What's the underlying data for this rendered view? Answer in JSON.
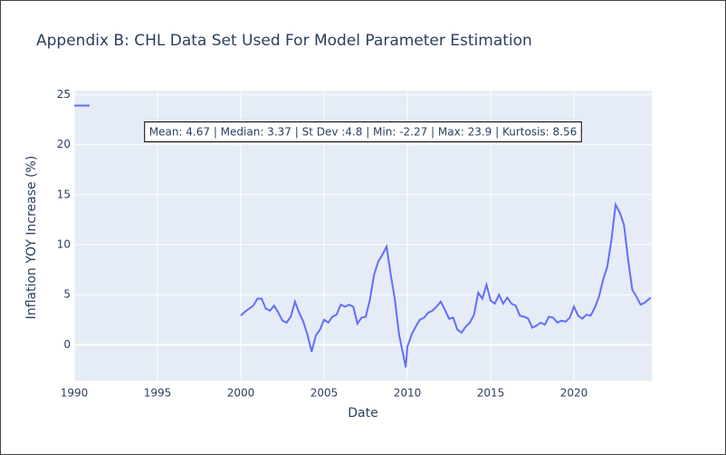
{
  "chart_data": {
    "type": "line",
    "title": "Appendix B: CHL Data Set Used For Model Parameter Estimation",
    "x_label": "Date",
    "y_label": "Inflation YOY Increase (%)",
    "annotation": "Mean: 4.67 | Median: 3.37 | St Dev :4.8 | Min: -2.27 | Max: 23.9 | Kurtosis: 8.56",
    "x": [
      1990,
      1990.92,
      null,
      2000,
      2000.25,
      2000.5,
      2000.75,
      2001,
      2001.25,
      2001.5,
      2001.75,
      2002,
      2002.25,
      2002.5,
      2002.75,
      2003,
      2003.25,
      2003.5,
      2003.75,
      2004,
      2004.25,
      2004.5,
      2004.75,
      2005,
      2005.25,
      2005.5,
      2005.75,
      2006,
      2006.25,
      2006.5,
      2006.75,
      2007,
      2007.25,
      2007.5,
      2007.75,
      2008,
      2008.25,
      2008.5,
      2008.75,
      2009,
      2009.25,
      2009.5,
      2009.75,
      2009.9,
      2010,
      2010.25,
      2010.5,
      2010.75,
      2011,
      2011.25,
      2011.5,
      2011.75,
      2012,
      2012.25,
      2012.5,
      2012.75,
      2013,
      2013.25,
      2013.5,
      2013.75,
      2014,
      2014.25,
      2014.5,
      2014.75,
      2015,
      2015.25,
      2015.5,
      2015.75,
      2016,
      2016.25,
      2016.5,
      2016.75,
      2017,
      2017.25,
      2017.5,
      2017.75,
      2018,
      2018.25,
      2018.5,
      2018.75,
      2019,
      2019.25,
      2019.5,
      2019.75,
      2020,
      2020.25,
      2020.5,
      2020.75,
      2021,
      2021.25,
      2021.5,
      2021.75,
      2022,
      2022.25,
      2022.5,
      2022.75,
      2023,
      2023.25,
      2023.5,
      2023.75,
      2024,
      2024.25,
      2024.6
    ],
    "series": [
      {
        "name": "CHL",
        "color": "#636efa",
        "values": [
          23.9,
          23.9,
          null,
          2.9,
          3.3,
          3.6,
          3.9,
          4.6,
          4.6,
          3.6,
          3.4,
          3.9,
          3.2,
          2.4,
          2.2,
          2.8,
          4.3,
          3.2,
          2.3,
          1.0,
          -0.7,
          0.9,
          1.5,
          2.5,
          2.2,
          2.8,
          3.0,
          4.0,
          3.8,
          4.0,
          3.8,
          2.1,
          2.7,
          2.8,
          4.5,
          7.0,
          8.3,
          9.0,
          9.8,
          7.0,
          4.5,
          1.0,
          -1.0,
          -2.27,
          -0.2,
          1.0,
          1.8,
          2.5,
          2.7,
          3.2,
          3.4,
          3.8,
          4.3,
          3.5,
          2.6,
          2.7,
          1.5,
          1.2,
          1.8,
          2.2,
          3.0,
          5.2,
          4.6,
          6.0,
          4.4,
          4.1,
          5.0,
          4.1,
          4.7,
          4.1,
          3.9,
          2.9,
          2.8,
          2.6,
          1.7,
          1.9,
          2.2,
          2.0,
          2.8,
          2.7,
          2.2,
          2.4,
          2.3,
          2.7,
          3.8,
          2.9,
          2.6,
          3.0,
          2.9,
          3.7,
          4.8,
          6.5,
          7.8,
          10.5,
          14.0,
          13.2,
          12.0,
          8.5,
          5.5,
          4.8,
          4.0,
          4.2,
          4.7
        ]
      }
    ],
    "xlim": [
      1990,
      2024.67
    ],
    "xticks": [
      1990,
      1995,
      2000,
      2005,
      2010,
      2015,
      2020
    ],
    "ylim": [
      -3.6,
      25.4
    ],
    "yticks": [
      0,
      5,
      10,
      15,
      20,
      25
    ],
    "grid": true,
    "plot_background": "#e5ecf6"
  }
}
